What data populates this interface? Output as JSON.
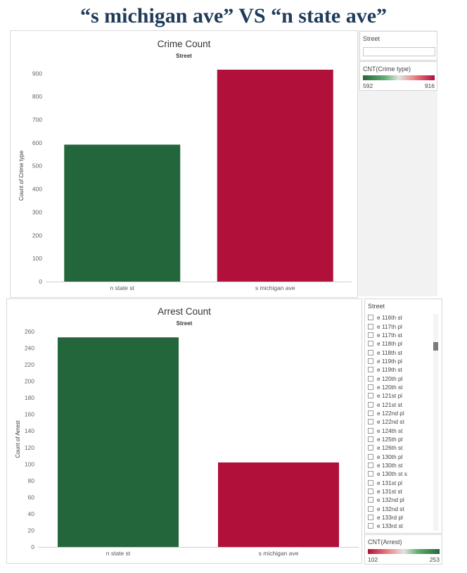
{
  "page_title": "“s michigan ave” VS “n state ave”",
  "colors": {
    "green": "#23663c",
    "red": "#b01039",
    "axis": "#bfbfbf",
    "text": "#666666"
  },
  "chart_data": [
    {
      "type": "bar",
      "title": "Crime Count",
      "subtitle": "Street",
      "xlabel": "",
      "ylabel": "Count of Crime type",
      "categories": [
        "n state st",
        "s michigan ave"
      ],
      "values": [
        592,
        916
      ],
      "bar_colors": [
        "#23663c",
        "#b01039"
      ],
      "yticks": [
        0,
        100,
        200,
        300,
        400,
        500,
        600,
        700,
        800,
        900
      ],
      "ylim": [
        0,
        916
      ],
      "grid": false
    },
    {
      "type": "bar",
      "title": "Arrest Count",
      "subtitle": "Street",
      "xlabel": "",
      "ylabel": "Count of Arrest",
      "categories": [
        "n state st",
        "s michigan ave"
      ],
      "values": [
        253,
        102
      ],
      "bar_colors": [
        "#23663c",
        "#b01039"
      ],
      "yticks": [
        0,
        20,
        40,
        60,
        80,
        100,
        120,
        140,
        160,
        180,
        200,
        220,
        240,
        260
      ],
      "ylim": [
        0,
        260
      ],
      "grid": false
    }
  ],
  "top_filter": {
    "title": "Street",
    "value": ""
  },
  "crime_legend": {
    "title": "CNT(Crime type)",
    "min": "592",
    "max": "916"
  },
  "street_filter": {
    "title": "Street",
    "items": [
      "e 116th st",
      "e 117th pl",
      "e 117th st",
      "e 118th pl",
      "e 118th st",
      "e 119th pl",
      "e 119th st",
      "e 120th pl",
      "e 120th st",
      "e 121st pl",
      "e 121st st",
      "e 122nd pl",
      "e 122nd st",
      "e 124th st",
      "e 125th pl",
      "e 126th st",
      "e 130th pl",
      "e 130th st",
      "e 130th st s",
      "e 131st pl",
      "e 131st st",
      "e 132nd pl",
      "e 132nd st",
      "e 133rd pl",
      "e 133rd st"
    ]
  },
  "arrest_legend": {
    "title": "CNT(Arrest)",
    "min": "102",
    "max": "253"
  }
}
